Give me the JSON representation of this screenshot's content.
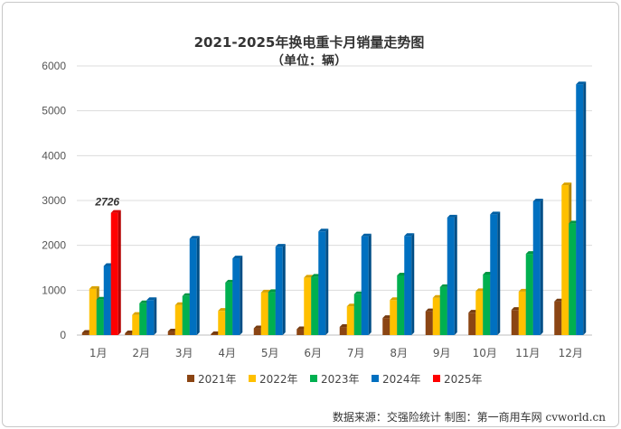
{
  "chart_data": {
    "type": "bar",
    "title": "2021-2025年换电重卡月销量走势图",
    "subtitle": "（单位：辆）",
    "categories": [
      "1月",
      "2月",
      "3月",
      "4月",
      "5月",
      "6月",
      "7月",
      "8月",
      "9月",
      "10月",
      "11月",
      "12月"
    ],
    "series": [
      {
        "name": "2021年",
        "color": "#8B4513",
        "values": [
          50,
          40,
          80,
          20,
          150,
          130,
          180,
          380,
          530,
          500,
          560,
          750
        ]
      },
      {
        "name": "2022年",
        "color": "#FFC000",
        "values": [
          1030,
          450,
          670,
          540,
          950,
          1280,
          640,
          780,
          830,
          980,
          970,
          3340
        ]
      },
      {
        "name": "2023年",
        "color": "#00B050",
        "values": [
          790,
          710,
          870,
          1170,
          960,
          1300,
          910,
          1330,
          1070,
          1350,
          1810,
          2490
        ]
      },
      {
        "name": "2024年",
        "color": "#0070C0",
        "values": [
          1540,
          780,
          2150,
          1710,
          1970,
          2310,
          2200,
          2210,
          2620,
          2690,
          2980,
          5590
        ]
      },
      {
        "name": "2025年",
        "color": "#FF0000",
        "values": [
          2726,
          null,
          null,
          null,
          null,
          null,
          null,
          null,
          null,
          null,
          null,
          null
        ]
      }
    ],
    "yticks": [
      "0",
      "1000",
      "2000",
      "3000",
      "4000",
      "5000",
      "6000"
    ],
    "ylim": [
      0,
      6000
    ],
    "grid": true,
    "legend_position": "bottom",
    "annotation": {
      "text": "2726",
      "category_index": 0,
      "series_index": 4
    }
  },
  "source_note": "数据来源：交强险统计 制图：第一商用车网 cvworld.cn"
}
